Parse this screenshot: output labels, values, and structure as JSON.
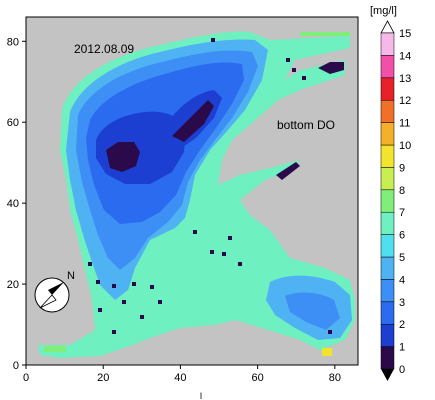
{
  "map": {
    "date_label": "2012.08.09",
    "variable_label": "bottom DO",
    "north_label": "N",
    "bottom_axis_label": "l",
    "x_ticks": [
      "0",
      "20",
      "40",
      "60",
      "80"
    ],
    "y_ticks": [
      "0",
      "20",
      "40",
      "60",
      "80"
    ],
    "x_range": [
      0,
      86
    ],
    "y_range": [
      0,
      86
    ],
    "background_color": "#c3c3c3"
  },
  "colorbar": {
    "unit": "[mg/l]",
    "ticks": [
      "0",
      "1",
      "2",
      "3",
      "4",
      "5",
      "6",
      "7",
      "8",
      "9",
      "10",
      "11",
      "12",
      "13",
      "14",
      "15"
    ],
    "colors": [
      "#2a0a4a",
      "#1c3fd2",
      "#2a6bf0",
      "#3d8ff5",
      "#4fb2f2",
      "#4fe0f0",
      "#6ff0c0",
      "#7fee7a",
      "#c8ee52",
      "#f2e42e",
      "#f5b02b",
      "#f0702a",
      "#e8202a",
      "#f050a8",
      "#f5b8e8"
    ],
    "top_cap_color": "#ffffff",
    "bottom_cap_color": "#000000"
  }
}
